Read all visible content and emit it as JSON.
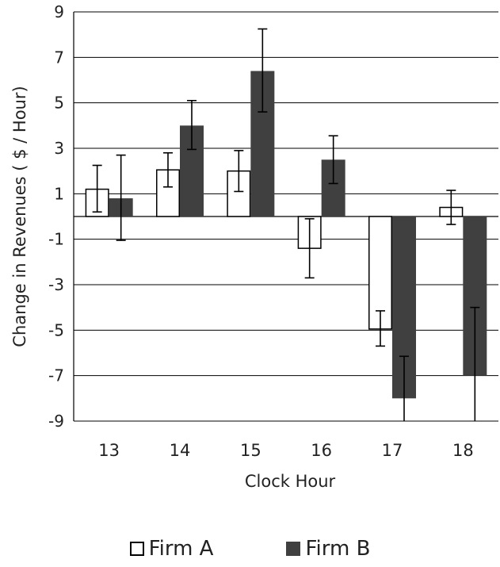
{
  "chart_data": {
    "type": "bar",
    "categories": [
      "13",
      "14",
      "15",
      "16",
      "17",
      "18"
    ],
    "series": [
      {
        "name": "Firm A",
        "values": [
          1.2,
          2.05,
          2.0,
          -1.4,
          -4.95,
          0.4
        ],
        "errors": [
          [
            0.2,
            2.25
          ],
          [
            1.3,
            2.8
          ],
          [
            1.1,
            2.9
          ],
          [
            -2.7,
            -0.1
          ],
          [
            -5.7,
            -4.15
          ],
          [
            -0.35,
            1.15
          ]
        ],
        "fill": "#ffffff",
        "stroke": "#000000"
      },
      {
        "name": "Firm B",
        "values": [
          0.8,
          4.0,
          6.4,
          2.5,
          -8.0,
          -7.0
        ],
        "errors": [
          [
            -1.05,
            2.7
          ],
          [
            2.95,
            5.1
          ],
          [
            4.6,
            8.25
          ],
          [
            1.45,
            3.55
          ],
          [
            -6.15,
            -9.0
          ],
          [
            -4.0,
            -9.0
          ]
        ],
        "fill": "#404040",
        "stroke": "#404040"
      }
    ],
    "yticks": [
      "9",
      "7",
      "5",
      "3",
      "1",
      "-1",
      "-3",
      "-5",
      "-7",
      "-9"
    ],
    "ylim": [
      -9,
      9
    ],
    "xlabel": "Clock Hour",
    "ylabel": "Change in Revenues ( $ / Hour)",
    "grid": true,
    "legend": "bottom"
  }
}
